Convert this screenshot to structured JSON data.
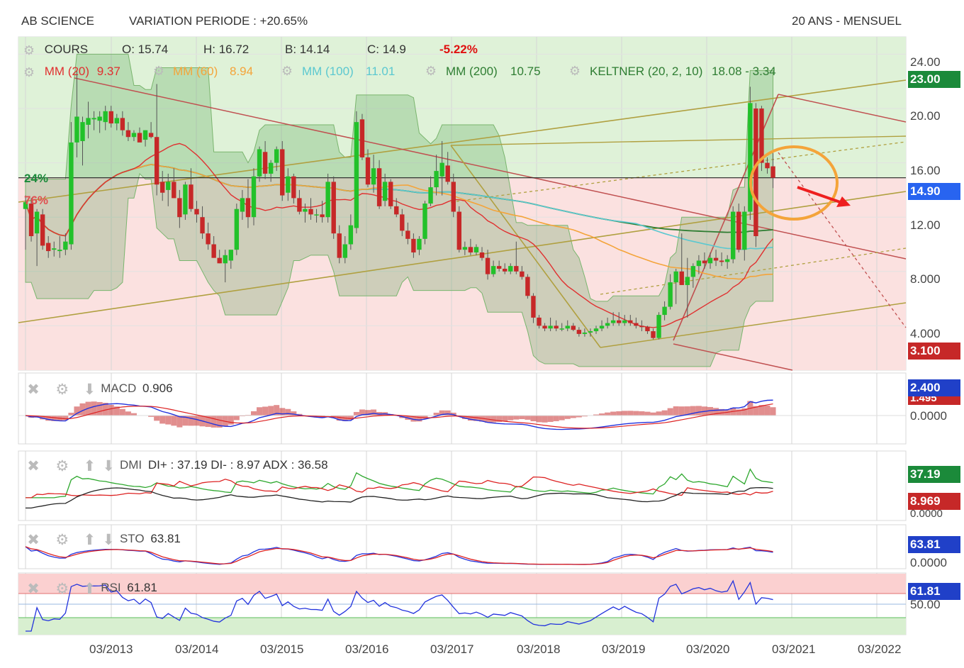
{
  "header": {
    "instrument": "AB SCIENCE",
    "variation": "VARIATION PERIODE : +20.65%",
    "period": "20 ANS - MENSUEL"
  },
  "quote": {
    "label": "COURS",
    "open": "O: 15.74",
    "high": "H: 16.72",
    "low": "B: 14.14",
    "close": "C: 14.9",
    "change": "-5.22%"
  },
  "indicators": {
    "mm20": {
      "label": "MM (20)",
      "value": "9.37",
      "color": "#e03030"
    },
    "mm60": {
      "label": "MM (60)",
      "value": "8.94",
      "color": "#f4a43a"
    },
    "mm100": {
      "label": "MM (100)",
      "value": "11.01",
      "color": "#5bc8d0"
    },
    "mm200": {
      "label": "MM (200)",
      "value": "10.75",
      "color": "#2e7d32"
    },
    "keltner": {
      "label": "KELTNER (20, 2, 10)",
      "value": "18.08 - 3.34",
      "color": "#2e7d32"
    }
  },
  "price_pct": {
    "upper": "24%",
    "lower": "76%"
  },
  "price_axis": {
    "ticks": [
      "24.00",
      "20.00",
      "16.00",
      "12.00",
      "8.000",
      "4.000"
    ],
    "badges": [
      {
        "value": "23.00",
        "color": "#1b8a3a"
      },
      {
        "value": "14.90",
        "color": "#2864f0"
      },
      {
        "value": "3.100",
        "color": "#c62828"
      }
    ]
  },
  "panels": {
    "macd": {
      "label": "MACD",
      "value": "0.906",
      "badges": [
        "2.400",
        "1.495"
      ],
      "tick": "0.0000"
    },
    "dmi": {
      "label": "DMI",
      "value": "DI+ : 37.19 DI- : 8.97 ADX : 36.58",
      "badges": [
        "37.19",
        "8.969"
      ],
      "tick": "0.0000"
    },
    "sto": {
      "label": "STO",
      "value": "63.81",
      "badges": [
        "63.81"
      ],
      "tick": "0.0000"
    },
    "rsi": {
      "label": "RSI",
      "value": "61.81",
      "badges": [
        "61.81"
      ],
      "tick": "50.00"
    }
  },
  "x_axis": [
    "03/2013",
    "03/2014",
    "03/2015",
    "03/2016",
    "03/2017",
    "03/2018",
    "03/2019",
    "03/2020",
    "03/2021",
    "03/2022"
  ],
  "chart_data": {
    "type": "candlestick",
    "title": "AB SCIENCE",
    "ylim": [
      2,
      25
    ],
    "candles": [
      {
        "o": 12.6,
        "h": 13.6,
        "l": 9.6,
        "c": 13.1
      },
      {
        "o": 13.0,
        "h": 13.4,
        "l": 10.2,
        "c": 10.6
      },
      {
        "o": 10.8,
        "h": 12.6,
        "l": 8.4,
        "c": 12.4
      },
      {
        "o": 12.2,
        "h": 12.6,
        "l": 9.6,
        "c": 9.9
      },
      {
        "o": 10.1,
        "h": 10.6,
        "l": 9.0,
        "c": 9.5
      },
      {
        "o": 9.6,
        "h": 10.2,
        "l": 9.1,
        "c": 9.7
      },
      {
        "o": 9.5,
        "h": 10.6,
        "l": 9.0,
        "c": 9.6
      },
      {
        "o": 9.6,
        "h": 10.8,
        "l": 9.2,
        "c": 10.2
      },
      {
        "o": 10.0,
        "h": 19.0,
        "l": 9.6,
        "c": 17.5
      },
      {
        "o": 17.5,
        "h": 22.8,
        "l": 16.4,
        "c": 19.4
      },
      {
        "o": 17.6,
        "h": 19.4,
        "l": 15.8,
        "c": 19.0
      },
      {
        "o": 18.8,
        "h": 20.5,
        "l": 17.8,
        "c": 19.3
      },
      {
        "o": 19.2,
        "h": 19.8,
        "l": 18.4,
        "c": 19.3
      },
      {
        "o": 19.1,
        "h": 19.8,
        "l": 18.2,
        "c": 19.4
      },
      {
        "o": 19.0,
        "h": 20.2,
        "l": 18.4,
        "c": 19.8
      },
      {
        "o": 19.8,
        "h": 20.2,
        "l": 18.6,
        "c": 18.9
      },
      {
        "o": 18.9,
        "h": 19.6,
        "l": 18.4,
        "c": 19.3
      },
      {
        "o": 19.3,
        "h": 19.8,
        "l": 18.0,
        "c": 18.4
      },
      {
        "o": 18.4,
        "h": 19.0,
        "l": 17.6,
        "c": 17.9
      },
      {
        "o": 17.9,
        "h": 18.4,
        "l": 17.6,
        "c": 18.2
      },
      {
        "o": 18.2,
        "h": 18.6,
        "l": 17.6,
        "c": 17.5
      },
      {
        "o": 17.7,
        "h": 18.4,
        "l": 17.2,
        "c": 18.4
      },
      {
        "o": 18.2,
        "h": 19.0,
        "l": 17.8,
        "c": 17.9
      },
      {
        "o": 17.9,
        "h": 21.8,
        "l": 13.6,
        "c": 14.4
      },
      {
        "o": 14.6,
        "h": 15.4,
        "l": 13.2,
        "c": 13.8
      },
      {
        "o": 14.0,
        "h": 15.2,
        "l": 12.8,
        "c": 14.6
      },
      {
        "o": 14.6,
        "h": 15.6,
        "l": 13.4,
        "c": 13.4
      },
      {
        "o": 13.4,
        "h": 14.0,
        "l": 11.2,
        "c": 12.0
      },
      {
        "o": 12.2,
        "h": 14.6,
        "l": 11.8,
        "c": 14.4
      },
      {
        "o": 14.4,
        "h": 15.6,
        "l": 12.4,
        "c": 12.6
      },
      {
        "o": 12.6,
        "h": 13.2,
        "l": 11.6,
        "c": 12.2
      },
      {
        "o": 12.0,
        "h": 12.8,
        "l": 10.4,
        "c": 10.8
      },
      {
        "o": 10.8,
        "h": 11.6,
        "l": 9.6,
        "c": 10.0
      },
      {
        "o": 10.0,
        "h": 10.6,
        "l": 9.0,
        "c": 9.0
      },
      {
        "o": 9.0,
        "h": 9.6,
        "l": 8.6,
        "c": 8.6
      },
      {
        "o": 8.6,
        "h": 9.6,
        "l": 7.2,
        "c": 9.2
      },
      {
        "o": 8.8,
        "h": 9.4,
        "l": 8.2,
        "c": 9.6
      },
      {
        "o": 9.6,
        "h": 13.0,
        "l": 9.2,
        "c": 12.6
      },
      {
        "o": 12.4,
        "h": 14.0,
        "l": 11.8,
        "c": 13.4
      },
      {
        "o": 13.4,
        "h": 14.8,
        "l": 11.2,
        "c": 12.0
      },
      {
        "o": 12.0,
        "h": 15.6,
        "l": 11.4,
        "c": 15.0
      },
      {
        "o": 15.0,
        "h": 17.2,
        "l": 14.6,
        "c": 17.0
      },
      {
        "o": 16.8,
        "h": 17.6,
        "l": 14.8,
        "c": 15.2
      },
      {
        "o": 15.2,
        "h": 16.2,
        "l": 14.6,
        "c": 16.0
      },
      {
        "o": 16.0,
        "h": 17.2,
        "l": 15.4,
        "c": 17.0
      },
      {
        "o": 17.0,
        "h": 17.6,
        "l": 13.2,
        "c": 13.6
      },
      {
        "o": 13.8,
        "h": 15.6,
        "l": 13.2,
        "c": 15.0
      },
      {
        "o": 15.0,
        "h": 15.2,
        "l": 13.0,
        "c": 13.4
      },
      {
        "o": 13.4,
        "h": 14.0,
        "l": 12.2,
        "c": 12.4
      },
      {
        "o": 12.4,
        "h": 13.0,
        "l": 11.6,
        "c": 12.6
      },
      {
        "o": 12.6,
        "h": 13.4,
        "l": 11.8,
        "c": 12.2
      },
      {
        "o": 12.2,
        "h": 12.6,
        "l": 11.6,
        "c": 12.2
      },
      {
        "o": 12.2,
        "h": 13.2,
        "l": 11.6,
        "c": 12.0
      },
      {
        "o": 12.0,
        "h": 15.2,
        "l": 11.6,
        "c": 14.6
      },
      {
        "o": 14.6,
        "h": 15.0,
        "l": 10.4,
        "c": 10.8
      },
      {
        "o": 10.8,
        "h": 11.4,
        "l": 8.6,
        "c": 9.0
      },
      {
        "o": 9.0,
        "h": 10.6,
        "l": 8.6,
        "c": 10.0
      },
      {
        "o": 10.0,
        "h": 12.2,
        "l": 9.6,
        "c": 11.4
      },
      {
        "o": 11.2,
        "h": 19.8,
        "l": 10.8,
        "c": 19.0
      },
      {
        "o": 19.2,
        "h": 19.6,
        "l": 16.2,
        "c": 16.4
      },
      {
        "o": 16.4,
        "h": 17.0,
        "l": 14.2,
        "c": 14.4
      },
      {
        "o": 14.4,
        "h": 16.6,
        "l": 13.8,
        "c": 15.6
      },
      {
        "o": 15.6,
        "h": 16.2,
        "l": 12.6,
        "c": 12.8
      },
      {
        "o": 13.2,
        "h": 15.2,
        "l": 12.8,
        "c": 14.6
      },
      {
        "o": 14.6,
        "h": 14.8,
        "l": 12.6,
        "c": 12.8
      },
      {
        "o": 12.8,
        "h": 13.4,
        "l": 12.0,
        "c": 12.2
      },
      {
        "o": 12.2,
        "h": 12.6,
        "l": 10.6,
        "c": 11.0
      },
      {
        "o": 11.0,
        "h": 11.6,
        "l": 10.0,
        "c": 10.4
      },
      {
        "o": 10.4,
        "h": 10.8,
        "l": 9.0,
        "c": 9.4
      },
      {
        "o": 9.6,
        "h": 10.6,
        "l": 9.2,
        "c": 10.4
      },
      {
        "o": 10.4,
        "h": 13.2,
        "l": 10.0,
        "c": 13.0
      },
      {
        "o": 13.0,
        "h": 15.0,
        "l": 12.8,
        "c": 14.2
      },
      {
        "o": 14.2,
        "h": 16.6,
        "l": 13.6,
        "c": 15.4
      },
      {
        "o": 15.0,
        "h": 17.6,
        "l": 13.6,
        "c": 16.0
      },
      {
        "o": 15.8,
        "h": 16.8,
        "l": 14.4,
        "c": 14.6
      },
      {
        "o": 14.6,
        "h": 15.2,
        "l": 12.0,
        "c": 12.4
      },
      {
        "o": 12.4,
        "h": 12.8,
        "l": 9.4,
        "c": 9.6
      },
      {
        "o": 9.6,
        "h": 10.2,
        "l": 9.2,
        "c": 9.8
      },
      {
        "o": 9.8,
        "h": 10.4,
        "l": 9.2,
        "c": 9.4
      },
      {
        "o": 9.4,
        "h": 10.0,
        "l": 9.2,
        "c": 9.8
      },
      {
        "o": 9.4,
        "h": 9.8,
        "l": 8.8,
        "c": 9.0
      },
      {
        "o": 9.0,
        "h": 9.6,
        "l": 7.4,
        "c": 7.8
      },
      {
        "o": 7.8,
        "h": 8.8,
        "l": 7.6,
        "c": 8.4
      },
      {
        "o": 8.4,
        "h": 8.8,
        "l": 8.0,
        "c": 8.2
      },
      {
        "o": 8.2,
        "h": 8.6,
        "l": 7.8,
        "c": 8.0
      },
      {
        "o": 8.0,
        "h": 8.6,
        "l": 7.8,
        "c": 8.4
      },
      {
        "o": 8.4,
        "h": 10.2,
        "l": 7.8,
        "c": 8.0
      },
      {
        "o": 8.0,
        "h": 8.4,
        "l": 7.4,
        "c": 7.6
      },
      {
        "o": 7.6,
        "h": 7.8,
        "l": 6.0,
        "c": 6.2
      },
      {
        "o": 6.2,
        "h": 6.4,
        "l": 4.2,
        "c": 4.6
      },
      {
        "o": 4.6,
        "h": 4.8,
        "l": 3.8,
        "c": 4.0
      },
      {
        "o": 4.0,
        "h": 4.2,
        "l": 3.6,
        "c": 3.8
      },
      {
        "o": 3.8,
        "h": 4.6,
        "l": 3.6,
        "c": 4.0
      },
      {
        "o": 4.0,
        "h": 4.4,
        "l": 3.6,
        "c": 3.8
      },
      {
        "o": 3.8,
        "h": 4.2,
        "l": 3.6,
        "c": 3.8
      },
      {
        "o": 3.8,
        "h": 4.4,
        "l": 3.6,
        "c": 4.0
      },
      {
        "o": 4.0,
        "h": 4.2,
        "l": 3.6,
        "c": 3.7
      },
      {
        "o": 3.7,
        "h": 3.9,
        "l": 3.2,
        "c": 3.4
      },
      {
        "o": 3.4,
        "h": 3.8,
        "l": 3.2,
        "c": 3.5
      },
      {
        "o": 3.5,
        "h": 3.8,
        "l": 3.2,
        "c": 3.6
      },
      {
        "o": 3.6,
        "h": 4.0,
        "l": 3.4,
        "c": 3.8
      },
      {
        "o": 3.8,
        "h": 4.4,
        "l": 3.6,
        "c": 4.0
      },
      {
        "o": 4.0,
        "h": 4.6,
        "l": 3.8,
        "c": 4.2
      },
      {
        "o": 4.2,
        "h": 5.0,
        "l": 4.0,
        "c": 4.4
      },
      {
        "o": 4.4,
        "h": 5.0,
        "l": 4.0,
        "c": 4.2
      },
      {
        "o": 4.2,
        "h": 4.8,
        "l": 4.0,
        "c": 4.4
      },
      {
        "o": 4.4,
        "h": 4.8,
        "l": 4.0,
        "c": 4.2
      },
      {
        "o": 4.2,
        "h": 4.6,
        "l": 3.8,
        "c": 4.0
      },
      {
        "o": 4.0,
        "h": 4.4,
        "l": 3.6,
        "c": 3.9
      },
      {
        "o": 3.9,
        "h": 4.0,
        "l": 3.4,
        "c": 3.6
      },
      {
        "o": 3.6,
        "h": 3.8,
        "l": 3.0,
        "c": 3.1
      },
      {
        "o": 3.1,
        "h": 5.0,
        "l": 3.0,
        "c": 4.8
      },
      {
        "o": 4.8,
        "h": 5.8,
        "l": 4.4,
        "c": 5.4
      },
      {
        "o": 5.4,
        "h": 7.8,
        "l": 5.2,
        "c": 7.2
      },
      {
        "o": 7.2,
        "h": 8.2,
        "l": 5.6,
        "c": 8.0
      },
      {
        "o": 8.0,
        "h": 10.8,
        "l": 7.0,
        "c": 7.0
      },
      {
        "o": 7.0,
        "h": 9.0,
        "l": 4.6,
        "c": 7.6
      },
      {
        "o": 7.6,
        "h": 8.6,
        "l": 6.8,
        "c": 8.4
      },
      {
        "o": 8.4,
        "h": 9.2,
        "l": 7.8,
        "c": 8.8
      },
      {
        "o": 8.8,
        "h": 9.4,
        "l": 8.2,
        "c": 8.6
      },
      {
        "o": 8.6,
        "h": 9.4,
        "l": 8.2,
        "c": 9.0
      },
      {
        "o": 9.0,
        "h": 9.6,
        "l": 8.4,
        "c": 8.8
      },
      {
        "o": 8.8,
        "h": 9.4,
        "l": 8.4,
        "c": 8.7
      },
      {
        "o": 8.7,
        "h": 9.2,
        "l": 8.2,
        "c": 8.9
      },
      {
        "o": 8.9,
        "h": 12.8,
        "l": 8.6,
        "c": 12.4
      },
      {
        "o": 12.4,
        "h": 13.0,
        "l": 9.4,
        "c": 9.6
      },
      {
        "o": 9.6,
        "h": 12.8,
        "l": 8.8,
        "c": 12.4
      },
      {
        "o": 12.4,
        "h": 21.6,
        "l": 11.8,
        "c": 20.4
      },
      {
        "o": 20.0,
        "h": 20.4,
        "l": 9.8,
        "c": 10.6
      },
      {
        "o": 20.0,
        "h": 20.2,
        "l": 15.4,
        "c": 16.0
      },
      {
        "o": 16.0,
        "h": 16.4,
        "l": 15.2,
        "c": 15.6
      },
      {
        "o": 15.74,
        "h": 16.72,
        "l": 14.14,
        "c": 14.9
      }
    ]
  }
}
